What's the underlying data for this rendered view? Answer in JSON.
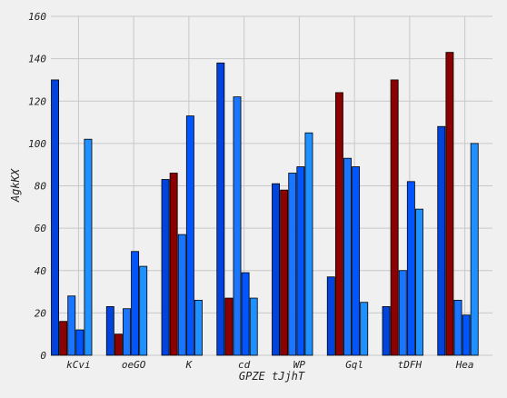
{
  "chart_data": {
    "type": "bar",
    "title": "",
    "xlabel": "GPZE tJjhT",
    "ylabel": "AgkKX",
    "ylim": [
      0,
      160
    ],
    "yticks": [
      0,
      20,
      40,
      60,
      80,
      100,
      120,
      140,
      160
    ],
    "grid": true,
    "legend": "none",
    "categories": [
      "kCvi",
      "oeGO",
      "K",
      "cd",
      "WP",
      "Gql",
      "tDFH",
      "Hea"
    ],
    "series": [
      {
        "color": "#0044dd",
        "values": [
          130,
          23,
          83,
          138,
          81,
          37,
          23,
          108
        ]
      },
      {
        "color": "#8b0000",
        "values": [
          16,
          10,
          86,
          27,
          78,
          124,
          130,
          143
        ]
      },
      {
        "color": "#1a75ff",
        "values": [
          28,
          22,
          57,
          122,
          86,
          93,
          40,
          26
        ]
      },
      {
        "color": "#0055ff",
        "values": [
          12,
          49,
          113,
          39,
          89,
          89,
          82,
          19
        ]
      },
      {
        "color": "#1e90ff",
        "values": [
          102,
          42,
          26,
          27,
          105,
          25,
          69,
          100
        ]
      }
    ]
  }
}
